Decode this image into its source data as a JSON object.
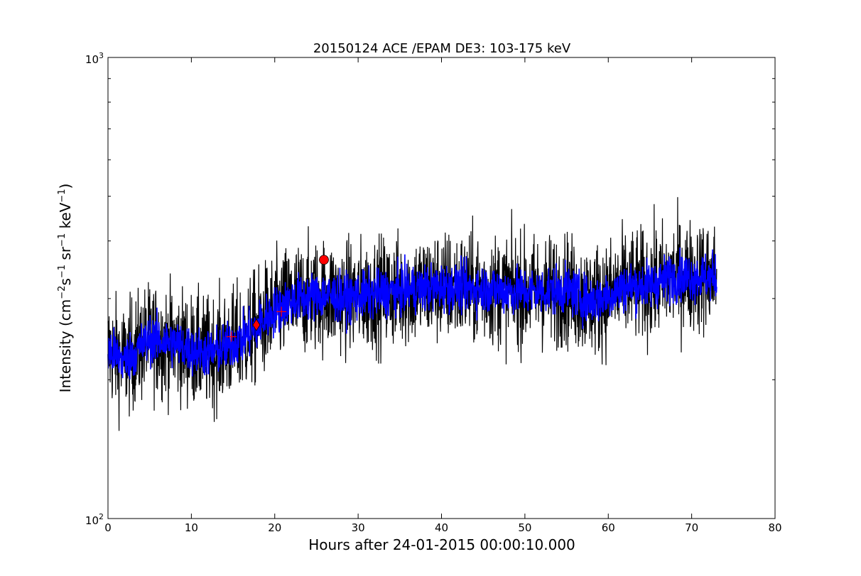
{
  "chart_data": {
    "type": "line",
    "title": "20150124 ACE /EPAM DE3: 103-175 keV",
    "xlabel": "Hours after 24-01-2015 00:00:10.000",
    "ylabel": {
      "text": "Intensity (cm",
      "sup1": "−2",
      "mid1": "s",
      "sup2": "−1",
      "mid2": " sr",
      "sup3": "−1",
      "mid3": " keV",
      "sup4": "−1",
      "end": ")"
    },
    "xlim": [
      0,
      80
    ],
    "ylim": [
      100,
      1000
    ],
    "yscale": "log",
    "xticks": [
      "0",
      "10",
      "20",
      "30",
      "40",
      "50",
      "60",
      "70",
      "80"
    ],
    "yticks": [
      {
        "base": "10",
        "exp": "2"
      },
      {
        "base": "10",
        "exp": "3"
      }
    ],
    "grid": false,
    "series": [
      {
        "style": "raw",
        "color": "#000000",
        "x": [
          0,
          2,
          5,
          8,
          10,
          12,
          14,
          16,
          17,
          18,
          19,
          20,
          21,
          22,
          24,
          26,
          28,
          30,
          35,
          40,
          45,
          50,
          55,
          57,
          58,
          60,
          62,
          65,
          68,
          70,
          73
        ],
        "values": [
          232,
          220,
          245,
          240,
          232,
          228,
          234,
          245,
          252,
          262,
          272,
          282,
          290,
          297,
          303,
          305,
          301,
          303,
          312,
          318,
          315,
          310,
          314,
          300,
          297,
          305,
          318,
          322,
          335,
          335,
          332
        ],
        "spread": 0.14
      },
      {
        "style": "smoothed",
        "color": "#0000ff",
        "x": [
          0,
          2,
          5,
          8,
          10,
          12,
          14,
          16,
          17,
          18,
          19,
          20,
          21,
          22,
          24,
          26,
          28,
          30,
          35,
          40,
          45,
          50,
          55,
          57,
          58,
          60,
          62,
          65,
          68,
          70,
          73
        ],
        "values": [
          232,
          220,
          245,
          240,
          232,
          228,
          234,
          245,
          252,
          262,
          272,
          282,
          290,
          297,
          303,
          305,
          301,
          303,
          312,
          318,
          315,
          310,
          314,
          300,
          297,
          305,
          318,
          322,
          335,
          335,
          332
        ],
        "spread": 0.06
      }
    ],
    "markers": [
      {
        "shape": "plus",
        "x": 14.8,
        "y": 248,
        "color": "#ff0000"
      },
      {
        "shape": "diamond",
        "x": 17.8,
        "y": 263,
        "color": "#ff0000"
      },
      {
        "shape": "plus",
        "x": 20.8,
        "y": 281,
        "color": "#ff0000"
      },
      {
        "shape": "circle",
        "x": 25.9,
        "y": 364,
        "color": "#ff0000"
      }
    ]
  }
}
